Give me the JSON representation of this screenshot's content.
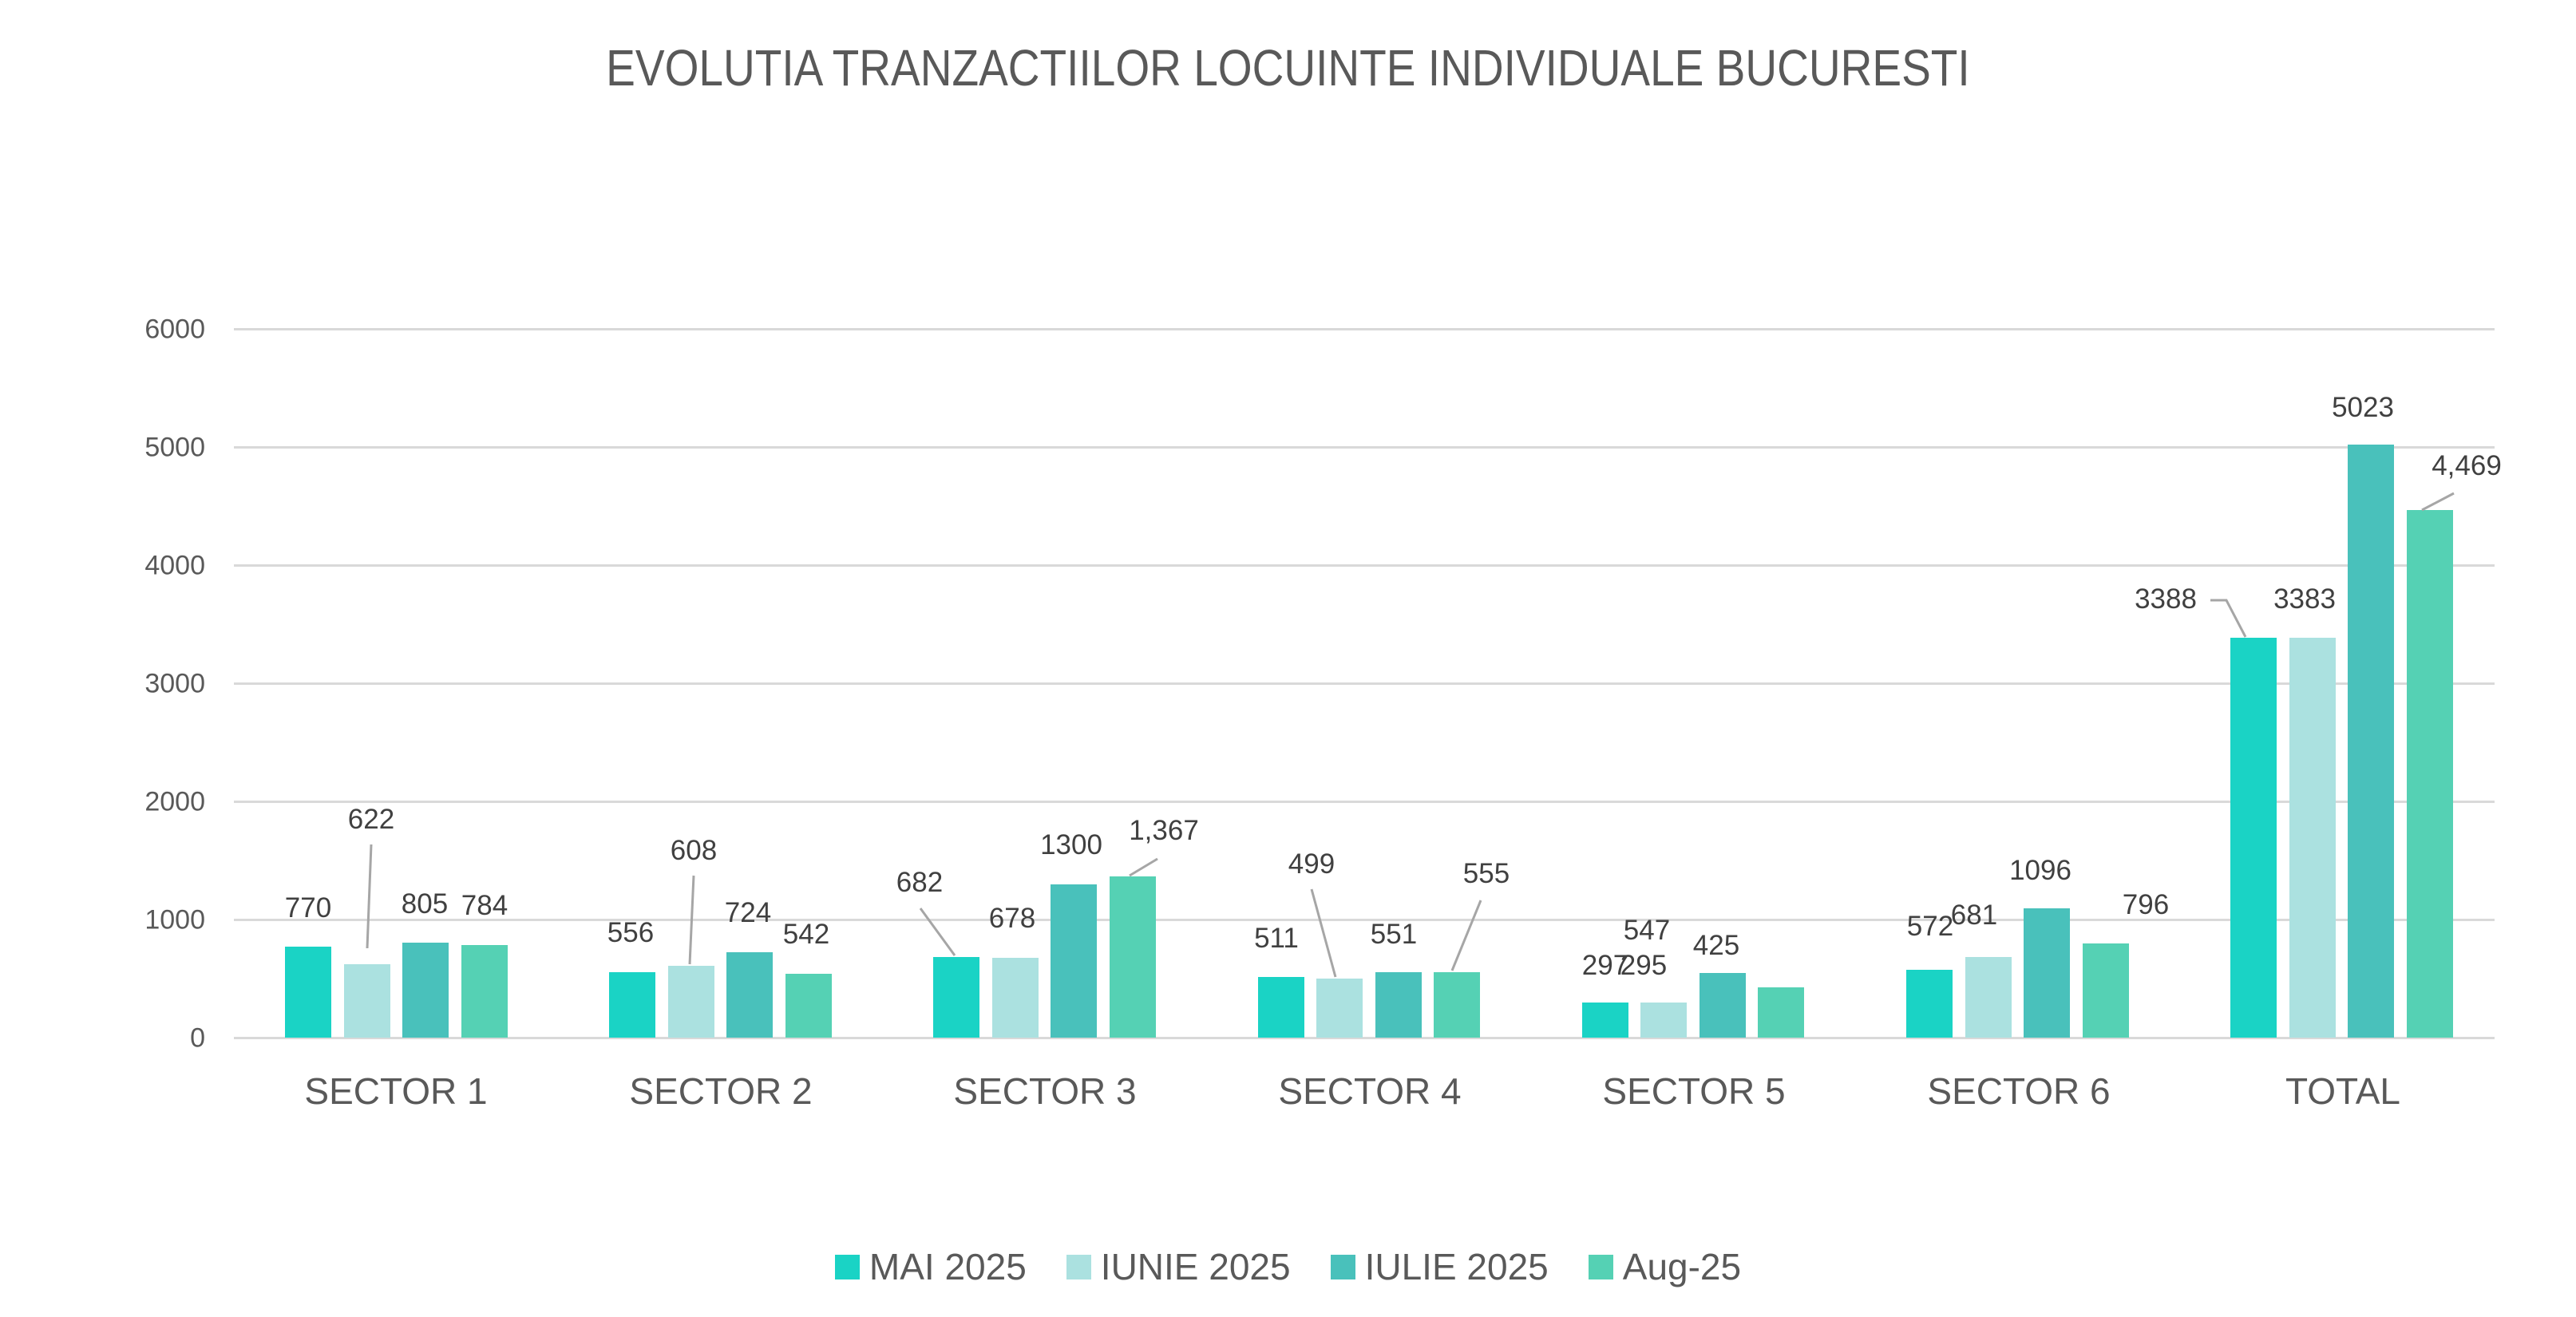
{
  "title": "EVOLUTIA TRANZACTIILOR LOCUINTE INDIVIDUALE BUCURESTI",
  "y_axis": {
    "ticks": [
      "0",
      "1000",
      "2000",
      "3000",
      "4000",
      "5000",
      "6000"
    ]
  },
  "categories": [
    "SECTOR 1",
    "SECTOR 2",
    "SECTOR 3",
    "SECTOR 4",
    "SECTOR 5",
    "SECTOR 6",
    "TOTAL"
  ],
  "legend": [
    {
      "label": "MAI 2025",
      "color": "#1AD3C5"
    },
    {
      "label": "IUNIE 2025",
      "color": "#ABE1E0"
    },
    {
      "label": "IULIE 2025",
      "color": "#49C1BB"
    },
    {
      "label": "Aug-25",
      "color": "#55D1B4"
    }
  ],
  "labels": {
    "s1": [
      "770",
      "622",
      "805",
      "784"
    ],
    "s2": [
      "556",
      "608",
      "724",
      "542"
    ],
    "s3": [
      "682",
      "678",
      "1300",
      "1,367"
    ],
    "s4": [
      "511",
      "499",
      "551",
      "555"
    ],
    "s5": [
      "297",
      "295",
      "547",
      "425"
    ],
    "s6": [
      "572",
      "681",
      "1096",
      "796"
    ],
    "total": [
      "3388",
      "3383",
      "5023",
      "4,469"
    ]
  },
  "chart_data": {
    "type": "bar",
    "title": "EVOLUTIA TRANZACTIILOR LOCUINTE INDIVIDUALE BUCURESTI",
    "xlabel": "",
    "ylabel": "",
    "ylim": [
      0,
      6000
    ],
    "yticks": [
      0,
      1000,
      2000,
      3000,
      4000,
      5000,
      6000
    ],
    "grid": true,
    "legend_position": "bottom",
    "categories": [
      "SECTOR 1",
      "SECTOR 2",
      "SECTOR 3",
      "SECTOR 4",
      "SECTOR 5",
      "SECTOR 6",
      "TOTAL"
    ],
    "series": [
      {
        "name": "MAI 2025",
        "color": "#1AD3C5",
        "values": [
          770,
          556,
          682,
          511,
          297,
          572,
          3388
        ]
      },
      {
        "name": "IUNIE 2025",
        "color": "#ABE1E0",
        "values": [
          622,
          608,
          678,
          499,
          295,
          681,
          3383
        ]
      },
      {
        "name": "IULIE 2025",
        "color": "#49C1BB",
        "values": [
          805,
          724,
          1300,
          551,
          547,
          1096,
          5023
        ]
      },
      {
        "name": "Aug-25",
        "color": "#55D1B4",
        "values": [
          784,
          542,
          1367,
          555,
          425,
          796,
          4469
        ]
      }
    ]
  }
}
